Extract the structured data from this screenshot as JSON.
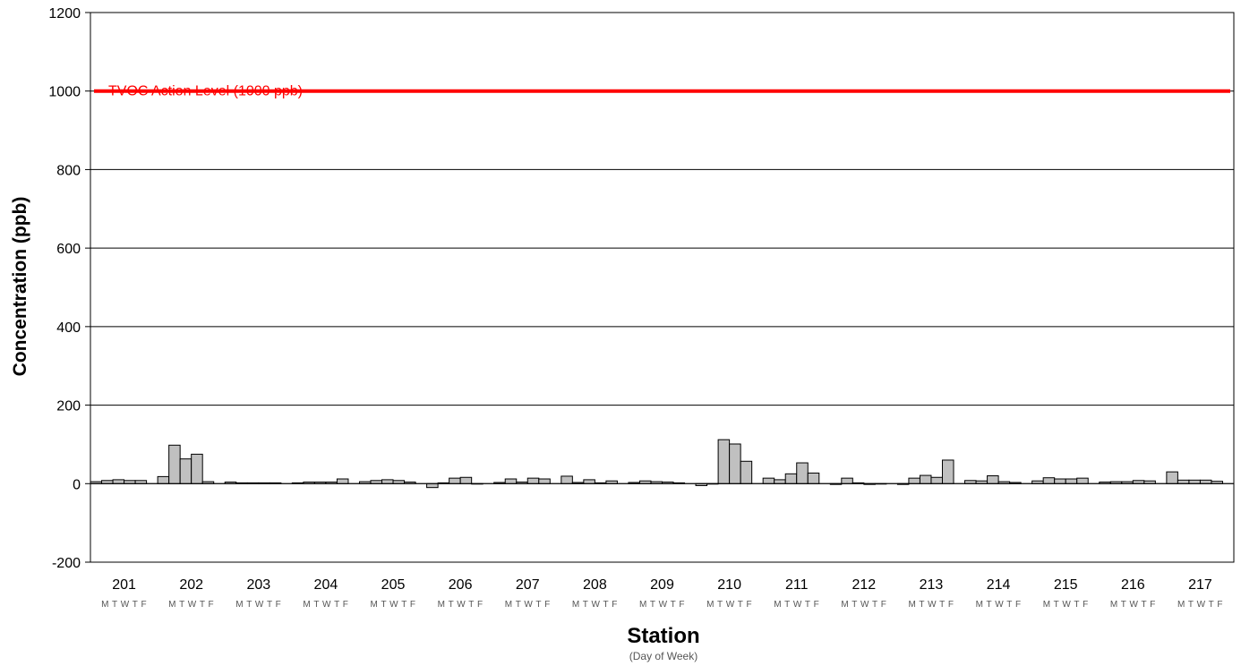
{
  "chart_data": {
    "type": "bar",
    "title": "",
    "ylabel": "Concentration (ppb)",
    "xlabel": "Station",
    "xlabel_sub": "(Day of Week)",
    "ylim": [
      -200,
      1200
    ],
    "yticks": [
      -200,
      0,
      200,
      400,
      600,
      800,
      1000,
      1200
    ],
    "grid": "horizontal",
    "day_labels": [
      "M",
      "T",
      "W",
      "T",
      "F"
    ],
    "categories": [
      "201",
      "202",
      "203",
      "204",
      "205",
      "206",
      "207",
      "208",
      "209",
      "210",
      "211",
      "212",
      "213",
      "214",
      "215",
      "216",
      "217"
    ],
    "values": [
      [
        5,
        8,
        10,
        8,
        8
      ],
      [
        18,
        98,
        63,
        75,
        5
      ],
      [
        4,
        2,
        2,
        2,
        2
      ],
      [
        2,
        4,
        4,
        4,
        12
      ],
      [
        5,
        8,
        10,
        8,
        4
      ],
      [
        -10,
        2,
        14,
        16,
        0
      ],
      [
        3,
        12,
        4,
        14,
        12
      ],
      [
        19,
        3,
        10,
        2,
        7
      ],
      [
        3,
        7,
        5,
        4,
        2
      ],
      [
        -5,
        0,
        112,
        101,
        57
      ],
      [
        14,
        10,
        25,
        53,
        27
      ],
      [
        -2,
        14,
        2,
        -2,
        0
      ],
      [
        -2,
        14,
        21,
        16,
        60
      ],
      [
        8,
        7,
        20,
        5,
        3
      ],
      [
        7,
        15,
        12,
        12,
        14
      ],
      [
        4,
        5,
        5,
        8,
        7
      ],
      [
        30,
        9,
        9,
        9,
        6
      ]
    ],
    "bar_color": "#c0c0c0",
    "reference_line": {
      "value": 1000,
      "label": "TVOC Action Level (1000 ppb)",
      "color": "#ff0000"
    }
  }
}
